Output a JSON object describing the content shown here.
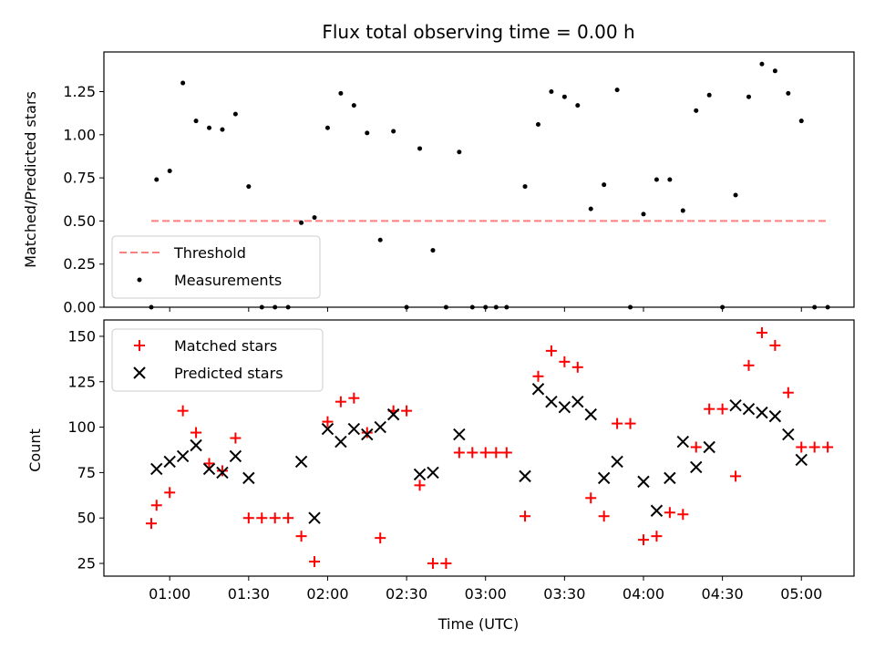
{
  "chart_data": [
    {
      "type": "scatter",
      "title": "Flux total observing time = 0.00 h",
      "xlabel": "",
      "ylabel": "Matched/Predicted stars",
      "ylim": [
        0,
        1.48
      ],
      "xlim": [
        "00:35",
        "05:20"
      ],
      "yticks": [
        "0.00",
        "0.25",
        "0.50",
        "0.75",
        "1.00",
        "1.25"
      ],
      "ytick_values": [
        0,
        0.25,
        0.5,
        0.75,
        1.0,
        1.25
      ],
      "xtick_values": [
        "01:00",
        "01:30",
        "02:00",
        "02:30",
        "03:00",
        "03:30",
        "04:00",
        "04:30",
        "05:00"
      ],
      "legend_position": "lower-left",
      "grid": false,
      "threshold": {
        "name": "Threshold",
        "value": 0.5,
        "x_start": "00:53",
        "x_end": "05:10",
        "color": "#ff7f7f",
        "style": "dashed"
      },
      "series": [
        {
          "name": "Measurements",
          "color": "#000000",
          "marker": "dot",
          "points": [
            [
              "00:53",
              0.0
            ],
            [
              "00:55",
              0.74
            ],
            [
              "01:00",
              0.79
            ],
            [
              "01:05",
              1.3
            ],
            [
              "01:10",
              1.08
            ],
            [
              "01:15",
              1.04
            ],
            [
              "01:20",
              1.03
            ],
            [
              "01:25",
              1.12
            ],
            [
              "01:30",
              0.7
            ],
            [
              "01:35",
              0.0
            ],
            [
              "01:40",
              0.0
            ],
            [
              "01:45",
              0.0
            ],
            [
              "01:50",
              0.49
            ],
            [
              "01:55",
              0.52
            ],
            [
              "02:00",
              1.04
            ],
            [
              "02:05",
              1.24
            ],
            [
              "02:10",
              1.17
            ],
            [
              "02:15",
              1.01
            ],
            [
              "02:20",
              0.39
            ],
            [
              "02:25",
              1.02
            ],
            [
              "02:30",
              0.0
            ],
            [
              "02:35",
              0.92
            ],
            [
              "02:40",
              0.33
            ],
            [
              "02:45",
              0.0
            ],
            [
              "02:50",
              0.9
            ],
            [
              "02:55",
              0.0
            ],
            [
              "03:00",
              0.0
            ],
            [
              "03:04",
              0.0
            ],
            [
              "03:08",
              0.0
            ],
            [
              "03:15",
              0.7
            ],
            [
              "03:20",
              1.06
            ],
            [
              "03:25",
              1.25
            ],
            [
              "03:30",
              1.22
            ],
            [
              "03:35",
              1.17
            ],
            [
              "03:40",
              0.57
            ],
            [
              "03:45",
              0.71
            ],
            [
              "03:50",
              1.26
            ],
            [
              "03:55",
              0.0
            ],
            [
              "04:00",
              0.54
            ],
            [
              "04:05",
              0.74
            ],
            [
              "04:10",
              0.74
            ],
            [
              "04:15",
              0.56
            ],
            [
              "04:20",
              1.14
            ],
            [
              "04:25",
              1.23
            ],
            [
              "04:30",
              0.0
            ],
            [
              "04:35",
              0.65
            ],
            [
              "04:40",
              1.22
            ],
            [
              "04:45",
              1.41
            ],
            [
              "04:50",
              1.37
            ],
            [
              "04:55",
              1.24
            ],
            [
              "05:00",
              1.08
            ],
            [
              "05:05",
              0.0
            ],
            [
              "05:10",
              0.0
            ]
          ]
        }
      ]
    },
    {
      "type": "scatter",
      "title": "",
      "xlabel": "Time (UTC)",
      "ylabel": "Count",
      "ylim": [
        18,
        159
      ],
      "xlim": [
        "00:35",
        "05:20"
      ],
      "yticks": [
        "25",
        "50",
        "75",
        "100",
        "125",
        "150"
      ],
      "ytick_values": [
        25,
        50,
        75,
        100,
        125,
        150
      ],
      "xticks": [
        "01:00",
        "01:30",
        "02:00",
        "02:30",
        "03:00",
        "03:30",
        "04:00",
        "04:30",
        "05:00"
      ],
      "legend_position": "upper-left",
      "grid": false,
      "series": [
        {
          "name": "Matched stars",
          "color": "#ff0000",
          "marker": "plus",
          "points": [
            [
              "00:53",
              47
            ],
            [
              "00:55",
              57
            ],
            [
              "01:00",
              64
            ],
            [
              "01:05",
              109
            ],
            [
              "01:10",
              97
            ],
            [
              "01:15",
              80
            ],
            [
              "01:20",
              76
            ],
            [
              "01:25",
              94
            ],
            [
              "01:30",
              50
            ],
            [
              "01:35",
              50
            ],
            [
              "01:40",
              50
            ],
            [
              "01:45",
              50
            ],
            [
              "01:50",
              40
            ],
            [
              "01:55",
              26
            ],
            [
              "02:00",
              103
            ],
            [
              "02:05",
              114
            ],
            [
              "02:10",
              116
            ],
            [
              "02:15",
              97
            ],
            [
              "02:20",
              39
            ],
            [
              "02:25",
              109
            ],
            [
              "02:30",
              109
            ],
            [
              "02:35",
              68
            ],
            [
              "02:40",
              25
            ],
            [
              "02:45",
              25
            ],
            [
              "02:50",
              86
            ],
            [
              "02:55",
              86
            ],
            [
              "03:00",
              86
            ],
            [
              "03:04",
              86
            ],
            [
              "03:08",
              86
            ],
            [
              "03:15",
              51
            ],
            [
              "03:20",
              128
            ],
            [
              "03:25",
              142
            ],
            [
              "03:30",
              136
            ],
            [
              "03:35",
              133
            ],
            [
              "03:40",
              61
            ],
            [
              "03:45",
              51
            ],
            [
              "03:50",
              102
            ],
            [
              "03:55",
              102
            ],
            [
              "04:00",
              38
            ],
            [
              "04:05",
              40
            ],
            [
              "04:10",
              53
            ],
            [
              "04:15",
              52
            ],
            [
              "04:20",
              89
            ],
            [
              "04:25",
              110
            ],
            [
              "04:30",
              110
            ],
            [
              "04:35",
              73
            ],
            [
              "04:40",
              134
            ],
            [
              "04:45",
              152
            ],
            [
              "04:50",
              145
            ],
            [
              "04:55",
              119
            ],
            [
              "05:00",
              89
            ],
            [
              "05:05",
              89
            ],
            [
              "05:10",
              89
            ]
          ]
        },
        {
          "name": "Predicted stars",
          "color": "#000000",
          "marker": "x",
          "points": [
            [
              "00:55",
              77
            ],
            [
              "01:00",
              81
            ],
            [
              "01:05",
              84
            ],
            [
              "01:10",
              90
            ],
            [
              "01:15",
              77
            ],
            [
              "01:20",
              75
            ],
            [
              "01:25",
              84
            ],
            [
              "01:30",
              72
            ],
            [
              "01:50",
              81
            ],
            [
              "01:55",
              50
            ],
            [
              "02:00",
              99
            ],
            [
              "02:05",
              92
            ],
            [
              "02:10",
              99
            ],
            [
              "02:15",
              96
            ],
            [
              "02:20",
              100
            ],
            [
              "02:25",
              107
            ],
            [
              "02:35",
              74
            ],
            [
              "02:40",
              75
            ],
            [
              "02:50",
              96
            ],
            [
              "03:15",
              73
            ],
            [
              "03:20",
              121
            ],
            [
              "03:25",
              114
            ],
            [
              "03:30",
              111
            ],
            [
              "03:35",
              114
            ],
            [
              "03:40",
              107
            ],
            [
              "03:45",
              72
            ],
            [
              "03:50",
              81
            ],
            [
              "04:00",
              70
            ],
            [
              "04:05",
              54
            ],
            [
              "04:10",
              72
            ],
            [
              "04:15",
              92
            ],
            [
              "04:20",
              78
            ],
            [
              "04:25",
              89
            ],
            [
              "04:35",
              112
            ],
            [
              "04:40",
              110
            ],
            [
              "04:45",
              108
            ],
            [
              "04:50",
              106
            ],
            [
              "04:55",
              96
            ],
            [
              "05:00",
              82
            ]
          ]
        }
      ]
    }
  ]
}
